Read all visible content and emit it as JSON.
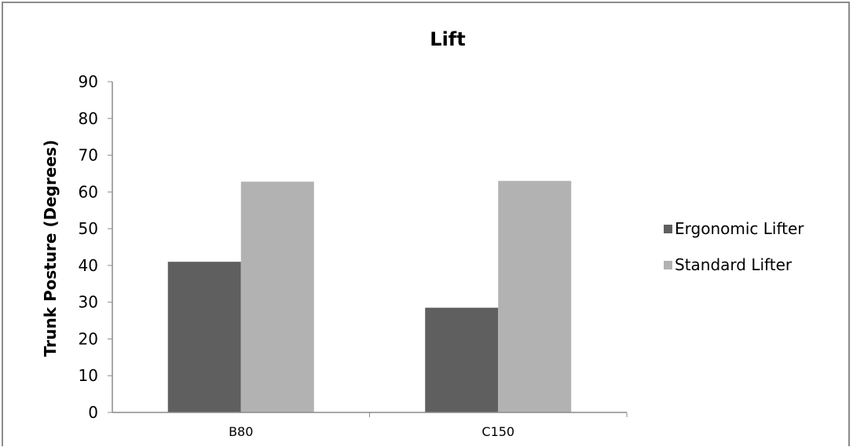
{
  "chart_data": {
    "type": "bar",
    "title": "Lift",
    "ylabel": "Trunk Posture (Degrees)",
    "xlabel": "",
    "categories": [
      "B80",
      "C150"
    ],
    "series": [
      {
        "name": "Ergonomic Lifter",
        "values": [
          41,
          28.5
        ],
        "color": "#5f5f5f"
      },
      {
        "name": "Standard Lifter",
        "values": [
          62.8,
          63
        ],
        "color": "#b2b2b2"
      }
    ],
    "ylim": [
      0,
      90
    ],
    "yticks": [
      "0",
      "10",
      "20",
      "30",
      "40",
      "50",
      "60",
      "70",
      "80",
      "90"
    ],
    "grid": false,
    "legend_position": "right"
  }
}
